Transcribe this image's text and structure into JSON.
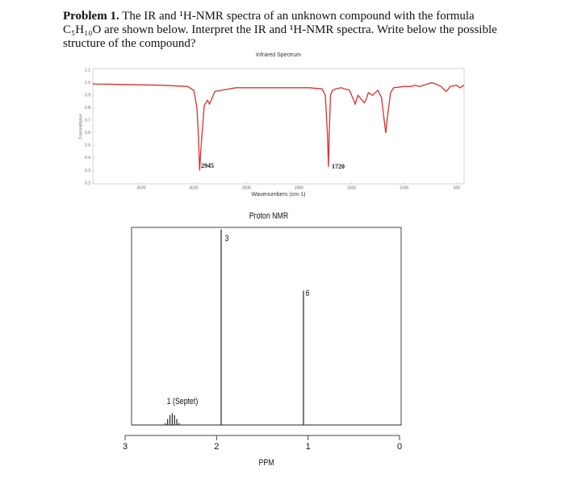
{
  "problem": {
    "label": "Problem 1.",
    "text": "The IR and ¹H-NMR spectra of an unknown compound with the formula C₅H₁₀O are shown below. Interpret the IR and ¹H-NMR spectra. Write below the possible structure of the compound?"
  },
  "chart_data": [
    {
      "type": "line",
      "title": "Infrared Spectrum",
      "x_label": "Wavenumbers (cm-1)",
      "y_label": "Transmittance",
      "color": "#d9302c",
      "x": [
        3960,
        3300,
        3060,
        3000,
        2970,
        2955,
        2945,
        2930,
        2900,
        2870,
        2850,
        2800,
        2600,
        2200,
        1900,
        1780,
        1750,
        1730,
        1720,
        1712,
        1700,
        1680,
        1650,
        1600,
        1520,
        1480,
        1465,
        1440,
        1420,
        1380,
        1365,
        1340,
        1300,
        1250,
        1215,
        1190,
        1175,
        1160,
        1130,
        1100,
        1000,
        930,
        900,
        850,
        780,
        740,
        700,
        650,
        600,
        560,
        500,
        470,
        430
      ],
      "values": [
        0.99,
        0.98,
        0.97,
        0.94,
        0.8,
        0.55,
        0.3,
        0.5,
        0.82,
        0.86,
        0.83,
        0.93,
        0.96,
        0.96,
        0.96,
        0.95,
        0.9,
        0.6,
        0.33,
        0.6,
        0.9,
        0.94,
        0.95,
        0.96,
        0.94,
        0.86,
        0.83,
        0.9,
        0.88,
        0.84,
        0.86,
        0.92,
        0.9,
        0.94,
        0.88,
        0.7,
        0.6,
        0.72,
        0.92,
        0.96,
        0.97,
        0.97,
        0.98,
        0.97,
        0.99,
        1.0,
        0.99,
        0.97,
        0.93,
        0.97,
        0.98,
        0.96,
        0.98
      ],
      "xlim": [
        3960,
        430
      ],
      "xticks": [
        3500,
        3000,
        2500,
        2000,
        1500,
        1000,
        500
      ],
      "ylim": [
        0.2,
        1.1
      ],
      "yticks": [
        0.2,
        0.3,
        0.4,
        0.5,
        0.6,
        0.7,
        0.8,
        0.9,
        {
          "value": 1,
          "label": "1.0"
        },
        1.1
      ],
      "annotations": [
        "2945",
        "1720"
      ]
    },
    {
      "type": "stem",
      "title": "Proton NMR",
      "x_label": "PPM",
      "color": "#222",
      "x": [
        2.56,
        2.535,
        2.51,
        2.485,
        2.46,
        2.435,
        2.41,
        1.95,
        1.05
      ],
      "values": [
        0.01,
        0.03,
        0.05,
        0.06,
        0.05,
        0.03,
        0.01,
        0.99,
        0.68
      ],
      "xlim": [
        3,
        0
      ],
      "xticks": [
        3,
        2,
        1,
        0
      ],
      "ylim": [
        0,
        1
      ],
      "peak_labels": [
        "1 (Septet)",
        "3",
        "6"
      ]
    }
  ]
}
